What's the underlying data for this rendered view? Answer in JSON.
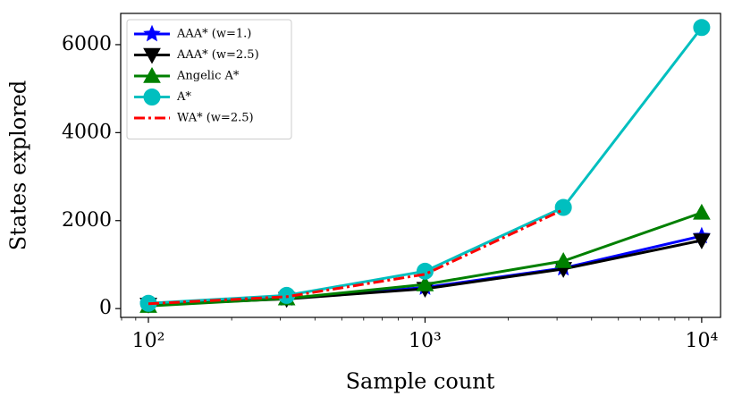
{
  "chart_data": {
    "type": "line",
    "xlabel": "Sample count",
    "ylabel": "States explored",
    "xscale": "log",
    "x": [
      100,
      316,
      1000,
      3162,
      10000
    ],
    "xlim": [
      79.4,
      11700
    ],
    "ylim": [
      -200,
      6710
    ],
    "xticks": [
      {
        "value": 100,
        "label": "10²"
      },
      {
        "value": 1000,
        "label": "10³"
      },
      {
        "value": 10000,
        "label": "10⁴"
      }
    ],
    "yticks": [
      0,
      2000,
      4000,
      6000
    ],
    "legend": "upper left",
    "series": [
      {
        "name": "AAA* (w=1.)",
        "color": "#0000ff",
        "marker": "star",
        "linestyle": "solid",
        "values": [
          90,
          230,
          480,
          920,
          1650
        ]
      },
      {
        "name": "AAA* (w=2.5)",
        "color": "#000000",
        "marker": "triangle-down",
        "linestyle": "solid",
        "values": [
          90,
          220,
          450,
          900,
          1550
        ]
      },
      {
        "name": "Angelic A*",
        "color": "#008000",
        "marker": "triangle-up",
        "linestyle": "solid",
        "values": [
          60,
          230,
          550,
          1080,
          2180
        ]
      },
      {
        "name": "A*",
        "color": "#00bfbf",
        "marker": "circle",
        "linestyle": "solid",
        "values": [
          120,
          300,
          850,
          2300,
          6390
        ]
      },
      {
        "name": "WA* (w=2.5)",
        "color": "#ff0000",
        "marker": "none",
        "linestyle": "dashdot",
        "values": [
          110,
          270,
          780,
          2250,
          null
        ]
      }
    ]
  }
}
